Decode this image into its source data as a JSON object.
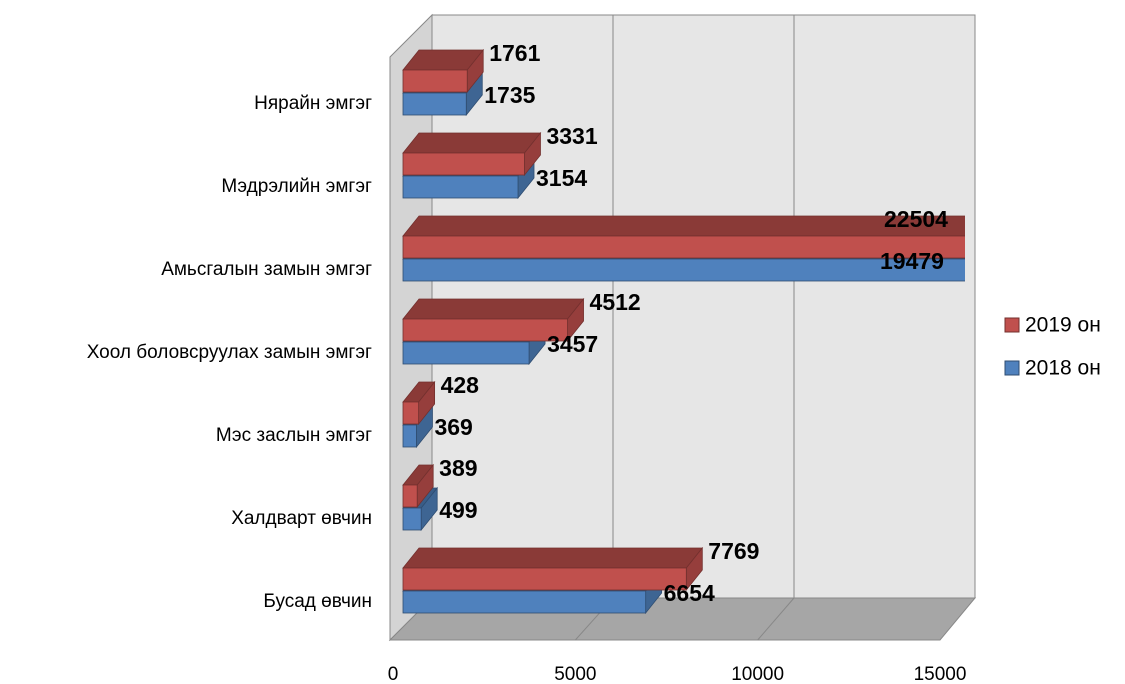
{
  "chart_data": {
    "type": "bar3d_horizontal",
    "categories": [
      "Нярайн эмгэг",
      "Мэдрэлийн эмгэг",
      "Амьсгалын замын эмгэг",
      "Хоол боловсруулах замын эмгэг",
      "Мэс заслын эмгэг",
      "Халдварт өвчин",
      "Бусад өвчин"
    ],
    "series": [
      {
        "name": "2019 он",
        "color": "#c0504d",
        "values": [
          1761,
          3331,
          22504,
          4512,
          428,
          389,
          7769
        ]
      },
      {
        "name": "2018 он",
        "color": "#4f81bd",
        "values": [
          1735,
          3154,
          19479,
          3457,
          369,
          499,
          6654
        ]
      }
    ],
    "xlim": [
      0,
      15000
    ],
    "xticks": [
      0,
      5000,
      10000,
      15000
    ],
    "grid": true,
    "legend": "right"
  }
}
